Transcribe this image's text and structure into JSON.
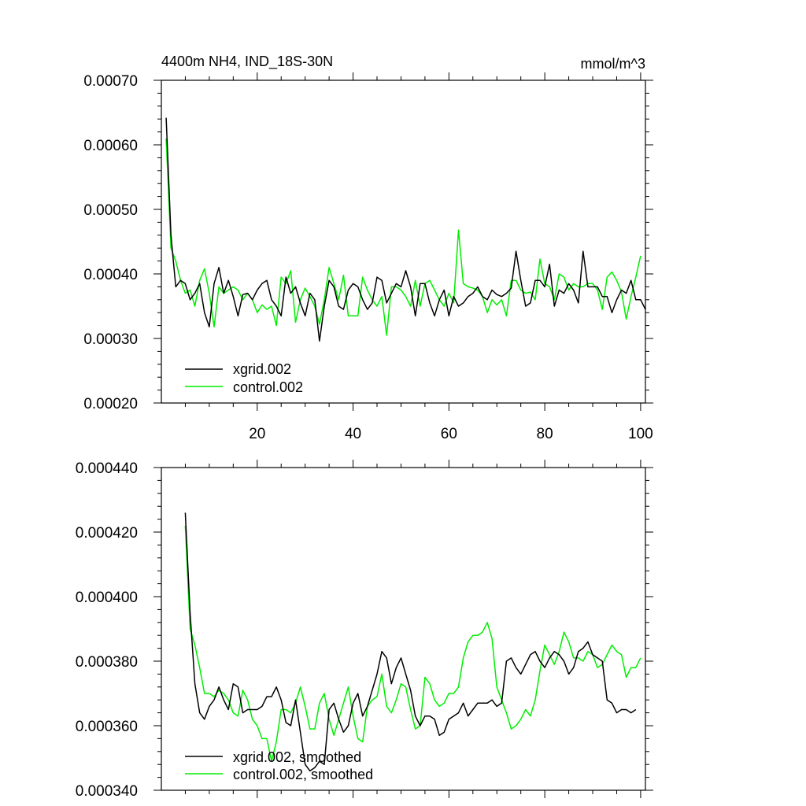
{
  "chart_data": [
    {
      "type": "line",
      "title": "4400m NH4, IND_18S-30N",
      "units": "mmol/m^3",
      "xlim": [
        0,
        101
      ],
      "ylim": [
        0.0002,
        0.0007
      ],
      "x_ticks": [
        20,
        40,
        60,
        80,
        100
      ],
      "x_tick_labels": [
        "20",
        "40",
        "60",
        "80",
        "100"
      ],
      "y_ticks": [
        0.0002,
        0.0003,
        0.0004,
        0.0005,
        0.0006,
        0.0007
      ],
      "y_tick_labels": [
        "0.00020",
        "0.00030",
        "0.00040",
        "0.00050",
        "0.00060",
        "0.00070"
      ],
      "legend_position": "bottom-left",
      "series": [
        {
          "name": "xgrid.002",
          "color": "#000000",
          "values": [
            0.000642,
            0.00046,
            0.00038,
            0.00039,
            0.000385,
            0.00036,
            0.00037,
            0.000385,
            0.00034,
            0.000318,
            0.000385,
            0.00041,
            0.00037,
            0.00039,
            0.000365,
            0.000335,
            0.000368,
            0.00037,
            0.00036,
            0.000375,
            0.000385,
            0.00039,
            0.00036,
            0.00035,
            0.000335,
            0.000395,
            0.00037,
            0.00038,
            0.000355,
            0.000335,
            0.00037,
            0.00036,
            0.000296,
            0.00035,
            0.00039,
            0.00038,
            0.00035,
            0.000345,
            0.000375,
            0.000385,
            0.00038,
            0.00036,
            0.000345,
            0.000355,
            0.000395,
            0.00039,
            0.000355,
            0.00037,
            0.000385,
            0.00038,
            0.000405,
            0.00038,
            0.000335,
            0.000385,
            0.000385,
            0.000355,
            0.000335,
            0.00036,
            0.000375,
            0.000335,
            0.000365,
            0.00035,
            0.000355,
            0.000365,
            0.00037,
            0.00038,
            0.000365,
            0.00036,
            0.000375,
            0.000368,
            0.000365,
            0.00037,
            0.000378,
            0.000435,
            0.00039,
            0.00035,
            0.000355,
            0.00039,
            0.00039,
            0.00038,
            0.000415,
            0.00035,
            0.000375,
            0.00037,
            0.000385,
            0.000375,
            0.000355,
            0.000435,
            0.00038,
            0.00038,
            0.00038,
            0.000365,
            0.000365,
            0.00034,
            0.00036,
            0.000375,
            0.00037,
            0.00039,
            0.00036,
            0.00036,
            0.000345
          ]
        },
        {
          "name": "control.002",
          "color": "#00ee00",
          "values": [
            0.00061,
            0.00044,
            0.00042,
            0.00039,
            0.00037,
            0.000375,
            0.00035,
            0.00039,
            0.000408,
            0.00037,
            0.000318,
            0.00038,
            0.00037,
            0.000375,
            0.00038,
            0.000375,
            0.00036,
            0.00037,
            0.00036,
            0.00034,
            0.000352,
            0.000345,
            0.00035,
            0.00032,
            0.000395,
            0.000385,
            0.000405,
            0.000325,
            0.00036,
            0.000378,
            0.000365,
            0.00035,
            0.000322,
            0.00036,
            0.00041,
            0.000385,
            0.00036,
            0.000398,
            0.000335,
            0.000335,
            0.000335,
            0.000395,
            0.000375,
            0.00036,
            0.00035,
            0.000365,
            0.000305,
            0.00038,
            0.00038,
            0.000375,
            0.000365,
            0.00035,
            0.00039,
            0.00035,
            0.000385,
            0.00039,
            0.000375,
            0.00036,
            0.00035,
            0.00037,
            0.000355,
            0.000468,
            0.000385,
            0.00038,
            0.000378,
            0.000375,
            0.000365,
            0.00034,
            0.00036,
            0.000352,
            0.00036,
            0.000335,
            0.00039,
            0.00039,
            0.000375,
            0.00037,
            0.000372,
            0.00036,
            0.000423,
            0.000385,
            0.00038,
            0.00036,
            0.0004,
            0.000395,
            0.000375,
            0.000385,
            0.00038,
            0.00038,
            0.000385,
            0.000385,
            0.000375,
            0.000345,
            0.000395,
            0.000403,
            0.00039,
            0.000372,
            0.00033,
            0.000365,
            0.000395,
            0.000428
          ]
        }
      ]
    },
    {
      "type": "line",
      "xlim": [
        0,
        101
      ],
      "ylim": [
        0.00034,
        0.00044
      ],
      "y_ticks": [
        0.00034,
        0.00036,
        0.00038,
        0.0004,
        0.00042,
        0.00044
      ],
      "y_tick_labels": [
        "0.000340",
        "0.000360",
        "0.000380",
        "0.000400",
        "0.000420",
        "0.000440"
      ],
      "legend_position": "bottom-left",
      "series": [
        {
          "name": "xgrid.002, smoothed",
          "color": "#000000",
          "values": [
            0.000426,
            0.000395,
            0.000373,
            0.000364,
            0.000362,
            0.000366,
            0.000368,
            0.000372,
            0.000368,
            0.000365,
            0.000373,
            0.000372,
            0.000364,
            0.000365,
            0.000365,
            0.000365,
            0.000366,
            0.000369,
            0.000369,
            0.000372,
            0.000368,
            0.000361,
            0.00036,
            0.000368,
            0.000358,
            0.000348,
            0.000346,
            0.000347,
            0.000349,
            0.000348,
            0.000365,
            0.000367,
            0.000362,
            0.000358,
            0.00036,
            0.000367,
            0.00037,
            0.000363,
            0.000366,
            0.000371,
            0.000376,
            0.000383,
            0.000381,
            0.000373,
            0.000378,
            0.000381,
            0.000376,
            0.000371,
            0.000363,
            0.00036,
            0.000363,
            0.000363,
            0.000362,
            0.000357,
            0.000358,
            0.000362,
            0.000363,
            0.000364,
            0.000367,
            0.000363,
            0.000365,
            0.000367,
            0.000367,
            0.000367,
            0.000368,
            0.000366,
            0.000367,
            0.00038,
            0.000381,
            0.000378,
            0.000376,
            0.000379,
            0.000382,
            0.000383,
            0.00038,
            0.000378,
            0.000381,
            0.000383,
            0.000382,
            0.00038,
            0.000376,
            0.000378,
            0.000383,
            0.000384,
            0.000386,
            0.000382,
            0.000381,
            0.00038,
            0.000368,
            0.000367,
            0.000364,
            0.000365,
            0.000365,
            0.000364,
            0.000365
          ]
        },
        {
          "name": "control.002, smoothed",
          "color": "#00ee00",
          "values": [
            0.000422,
            0.00039,
            0.000385,
            0.000378,
            0.00037,
            0.00037,
            0.000369,
            0.000371,
            0.00037,
            0.000368,
            0.000364,
            0.000363,
            0.000371,
            0.000368,
            0.000362,
            0.00036,
            0.000356,
            0.000356,
            0.000349,
            0.000355,
            0.000365,
            0.000365,
            0.000364,
            0.000367,
            0.000372,
            0.000366,
            0.000359,
            0.000359,
            0.000367,
            0.00037,
            0.000362,
            0.000357,
            0.000362,
            0.000367,
            0.000372,
            0.000363,
            0.000356,
            0.000355,
            0.000366,
            0.000368,
            0.000369,
            0.000376,
            0.000366,
            0.000364,
            0.000368,
            0.000373,
            0.000372,
            0.000365,
            0.000359,
            0.00036,
            0.000375,
            0.000373,
            0.000368,
            0.000366,
            0.000367,
            0.00037,
            0.00037,
            0.000372,
            0.000381,
            0.000386,
            0.000388,
            0.000388,
            0.000389,
            0.000392,
            0.000387,
            0.000372,
            0.000368,
            0.000364,
            0.000359,
            0.00036,
            0.000362,
            0.000365,
            0.000363,
            0.000368,
            0.000377,
            0.000385,
            0.000382,
            0.000379,
            0.000383,
            0.000389,
            0.000386,
            0.000381,
            0.000381,
            0.00038,
            0.000383,
            0.000382,
            0.000378,
            0.000379,
            0.000382,
            0.000385,
            0.000383,
            0.000382,
            0.000375,
            0.000378,
            0.000378,
            0.000381
          ]
        }
      ]
    }
  ]
}
